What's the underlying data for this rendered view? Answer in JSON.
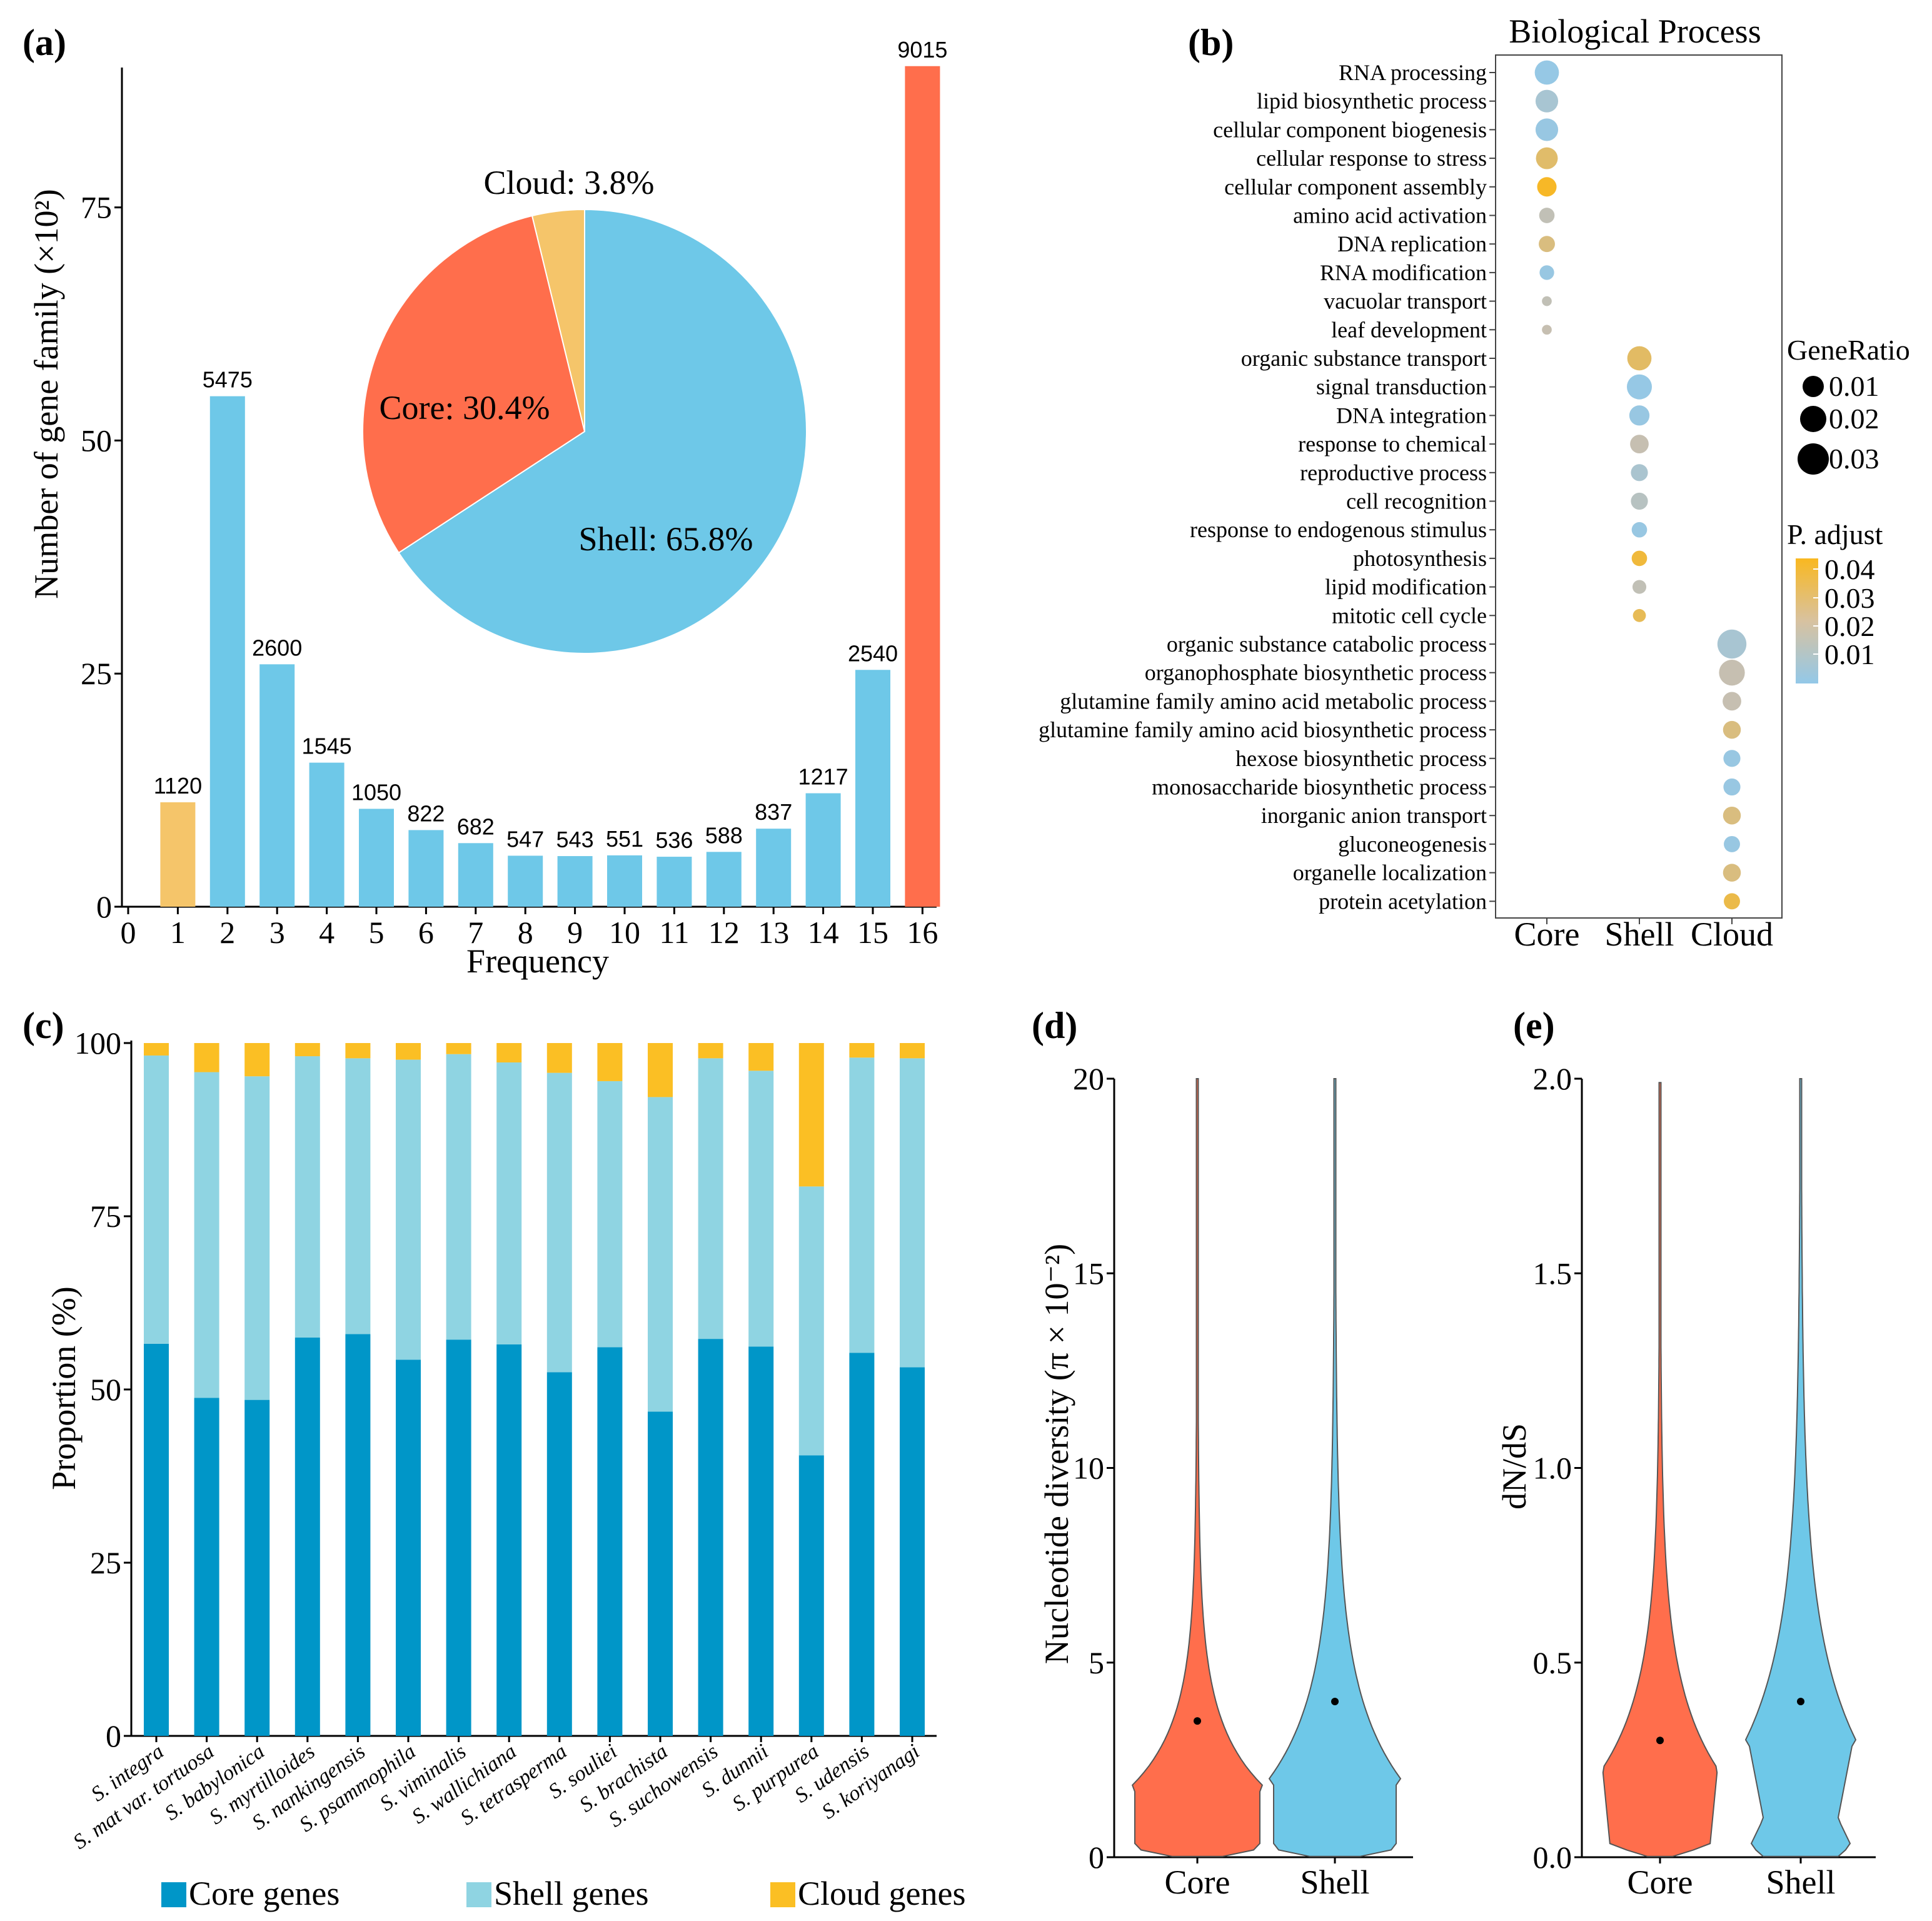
{
  "colors": {
    "core_orange": "#FF6E4C",
    "shell_blue": "#6EC8E8",
    "cloud_yellow": "#F5C56A",
    "axis": "#000000",
    "c_core": "#0096C8",
    "c_shell": "#8FD4E2",
    "c_cloud": "#FBBF24",
    "padj_low": "#93C8E8",
    "padj_high": "#F9B820"
  },
  "chart_data": [
    {
      "panel": "(a)",
      "type": "bar",
      "xlabel": "Frequency",
      "ylabel": "Number of gene family (×10²)",
      "xticks": [
        "0",
        "1",
        "2",
        "3",
        "4",
        "5",
        "6",
        "7",
        "8",
        "9",
        "10",
        "11",
        "12",
        "13",
        "14",
        "15",
        "16"
      ],
      "yticks": [
        "0",
        "25",
        "50",
        "75"
      ],
      "ylim": [
        0,
        90
      ],
      "categories": [
        1,
        2,
        3,
        4,
        5,
        6,
        7,
        8,
        9,
        10,
        11,
        12,
        13,
        14,
        15,
        16
      ],
      "values": [
        1120,
        5475,
        2600,
        1545,
        1050,
        822,
        682,
        547,
        543,
        551,
        536,
        588,
        837,
        1217,
        2540,
        9015
      ],
      "labels": [
        "1120",
        "5475",
        "2600",
        "1545",
        "1050",
        "822",
        "682",
        "547",
        "543",
        "551",
        "536",
        "588",
        "837",
        "1217",
        "2540",
        "9015"
      ],
      "group": [
        "cloud",
        "shell",
        "shell",
        "shell",
        "shell",
        "shell",
        "shell",
        "shell",
        "shell",
        "shell",
        "shell",
        "shell",
        "shell",
        "shell",
        "shell",
        "core"
      ],
      "inset_pie": {
        "type": "pie",
        "slices": [
          {
            "name": "Shell",
            "value": 65.8,
            "label": "Shell: 65.8%"
          },
          {
            "name": "Core",
            "value": 30.4,
            "label": "Core: 30.4%"
          },
          {
            "name": "Cloud",
            "value": 3.8,
            "label": "Cloud: 3.8%"
          }
        ]
      }
    },
    {
      "panel": "(b)",
      "type": "scatter",
      "title": "Biological Process",
      "columns": [
        "Core",
        "Shell",
        "Cloud"
      ],
      "size_legend_title": "GeneRatio",
      "size_legend": [
        "0.01",
        "0.02",
        "0.03"
      ],
      "color_legend_title": "P. adjust",
      "color_legend": [
        "0.04",
        "0.03",
        "0.02",
        "0.01"
      ],
      "terms": [
        {
          "term": "RNA processing",
          "col": "Core",
          "ratio": 0.024,
          "padj": 0.005
        },
        {
          "term": "lipid biosynthetic process",
          "col": "Core",
          "ratio": 0.022,
          "padj": 0.012
        },
        {
          "term": "cellular component biogenesis",
          "col": "Core",
          "ratio": 0.022,
          "padj": 0.006
        },
        {
          "term": "cellular response to stress",
          "col": "Core",
          "ratio": 0.021,
          "padj": 0.035
        },
        {
          "term": "cellular component assembly",
          "col": "Core",
          "ratio": 0.018,
          "padj": 0.045
        },
        {
          "term": "amino acid activation",
          "col": "Core",
          "ratio": 0.013,
          "padj": 0.022
        },
        {
          "term": "DNA replication",
          "col": "Core",
          "ratio": 0.014,
          "padj": 0.032
        },
        {
          "term": "RNA modification",
          "col": "Core",
          "ratio": 0.012,
          "padj": 0.006
        },
        {
          "term": "vacuolar transport",
          "col": "Core",
          "ratio": 0.006,
          "padj": 0.022
        },
        {
          "term": "leaf development",
          "col": "Core",
          "ratio": 0.006,
          "padj": 0.024
        },
        {
          "term": "organic substance transport",
          "col": "Shell",
          "ratio": 0.024,
          "padj": 0.036
        },
        {
          "term": "signal transduction",
          "col": "Shell",
          "ratio": 0.025,
          "padj": 0.005
        },
        {
          "term": "DNA integration",
          "col": "Shell",
          "ratio": 0.019,
          "padj": 0.006
        },
        {
          "term": "response to chemical",
          "col": "Shell",
          "ratio": 0.017,
          "padj": 0.024
        },
        {
          "term": "reproductive process",
          "col": "Shell",
          "ratio": 0.015,
          "padj": 0.013
        },
        {
          "term": "cell recognition",
          "col": "Shell",
          "ratio": 0.015,
          "padj": 0.018
        },
        {
          "term": "response to endogenous stimulus",
          "col": "Shell",
          "ratio": 0.013,
          "padj": 0.006
        },
        {
          "term": "photosynthesis",
          "col": "Shell",
          "ratio": 0.013,
          "padj": 0.042
        },
        {
          "term": "lipid modification",
          "col": "Shell",
          "ratio": 0.011,
          "padj": 0.022
        },
        {
          "term": "mitotic cell cycle",
          "col": "Shell",
          "ratio": 0.01,
          "padj": 0.038
        },
        {
          "term": "organic substance catabolic process",
          "col": "Cloud",
          "ratio": 0.03,
          "padj": 0.012
        },
        {
          "term": "organophosphate biosynthetic process",
          "col": "Cloud",
          "ratio": 0.026,
          "padj": 0.024
        },
        {
          "term": "glutamine family amino acid metabolic process",
          "col": "Cloud",
          "ratio": 0.017,
          "padj": 0.024
        },
        {
          "term": "glutamine family amino acid biosynthetic process",
          "col": "Cloud",
          "ratio": 0.016,
          "padj": 0.032
        },
        {
          "term": "hexose biosynthetic process",
          "col": "Cloud",
          "ratio": 0.015,
          "padj": 0.006
        },
        {
          "term": "monosaccharide biosynthetic process",
          "col": "Cloud",
          "ratio": 0.015,
          "padj": 0.006
        },
        {
          "term": "inorganic anion transport",
          "col": "Cloud",
          "ratio": 0.016,
          "padj": 0.032
        },
        {
          "term": "gluconeogenesis",
          "col": "Cloud",
          "ratio": 0.014,
          "padj": 0.006
        },
        {
          "term": "organelle localization",
          "col": "Cloud",
          "ratio": 0.016,
          "padj": 0.032
        },
        {
          "term": "protein acetylation",
          "col": "Cloud",
          "ratio": 0.014,
          "padj": 0.04
        }
      ]
    },
    {
      "panel": "(c)",
      "type": "bar",
      "stacked": true,
      "ylabel": "Proportion (%)",
      "yticks": [
        "0",
        "25",
        "50",
        "75",
        "100"
      ],
      "ylim": [
        0,
        100
      ],
      "categories": [
        "S. integra",
        "S. mat var. tortuosa",
        "S. babylonica",
        "S. myrtilloides",
        "S. nankingensis",
        "S. psammophila",
        "S. viminalis",
        "S. wallichiana",
        "S. tetrasperma",
        "S. souliei",
        "S. brachista",
        "S. suchowensis",
        "S. dunnii",
        "S. purpurea",
        "S. udensis",
        "S. koriyanagi"
      ],
      "series": [
        {
          "name": "Core genes",
          "values": [
            56.6,
            48.8,
            48.5,
            57.5,
            58.0,
            54.3,
            57.2,
            56.5,
            52.5,
            56.1,
            46.8,
            57.3,
            56.2,
            40.5,
            55.3,
            53.2
          ]
        },
        {
          "name": "Shell genes",
          "values": [
            41.6,
            47.0,
            46.7,
            40.6,
            39.8,
            43.3,
            41.2,
            40.7,
            43.2,
            38.4,
            45.4,
            40.5,
            39.8,
            38.8,
            42.6,
            44.6
          ]
        },
        {
          "name": "Cloud genes",
          "values": [
            1.8,
            4.2,
            4.8,
            1.9,
            2.2,
            2.4,
            1.6,
            2.8,
            4.3,
            5.5,
            7.8,
            2.2,
            4.0,
            20.7,
            2.1,
            2.2
          ]
        }
      ],
      "legend": [
        "Core genes",
        "Shell genes",
        "Cloud genes"
      ]
    },
    {
      "panel": "(d)",
      "type": "violin",
      "ylabel": "Nucleotide diversity (π × 10⁻²)",
      "categories": [
        "Core",
        "Shell"
      ],
      "yticks": [
        "0",
        "5",
        "10",
        "15",
        "20"
      ],
      "ylim": [
        0,
        20
      ],
      "medians": [
        3.5,
        4.0
      ],
      "max": [
        20,
        20
      ]
    },
    {
      "panel": "(e)",
      "type": "violin",
      "ylabel": "dN/dS",
      "categories": [
        "Core",
        "Shell"
      ],
      "yticks": [
        "0.0",
        "0.5",
        "1.0",
        "1.5",
        "2.0"
      ],
      "ylim": [
        0,
        2.0
      ],
      "medians": [
        0.3,
        0.4
      ],
      "max": [
        1.99,
        2.0
      ]
    }
  ]
}
